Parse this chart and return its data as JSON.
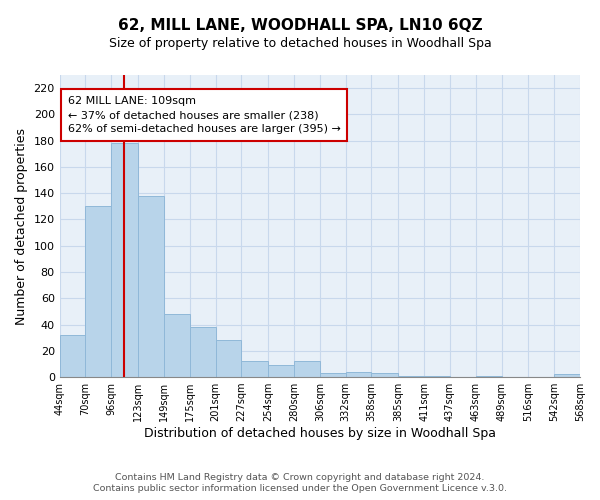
{
  "title": "62, MILL LANE, WOODHALL SPA, LN10 6QZ",
  "subtitle": "Size of property relative to detached houses in Woodhall Spa",
  "xlabel": "Distribution of detached houses by size in Woodhall Spa",
  "ylabel": "Number of detached properties",
  "footer_line1": "Contains HM Land Registry data © Crown copyright and database right 2024.",
  "footer_line2": "Contains public sector information licensed under the Open Government Licence v.3.0.",
  "bar_color": "#b8d4ea",
  "bar_edge_color": "#90b8d8",
  "grid_color": "#c8d8ec",
  "vline_color": "#cc0000",
  "annotation_box_edge": "#cc0000",
  "annotation_text_line1": "62 MILL LANE: 109sqm",
  "annotation_text_line2": "← 37% of detached houses are smaller (238)",
  "annotation_text_line3": "62% of semi-detached houses are larger (395) →",
  "property_size": 109,
  "bin_edges": [
    44,
    70,
    96,
    123,
    149,
    175,
    201,
    227,
    254,
    280,
    306,
    332,
    358,
    385,
    411,
    437,
    463,
    489,
    516,
    542,
    568
  ],
  "bin_labels": [
    "44sqm",
    "70sqm",
    "96sqm",
    "123sqm",
    "149sqm",
    "175sqm",
    "201sqm",
    "227sqm",
    "254sqm",
    "280sqm",
    "306sqm",
    "332sqm",
    "358sqm",
    "385sqm",
    "411sqm",
    "437sqm",
    "463sqm",
    "489sqm",
    "516sqm",
    "542sqm",
    "568sqm"
  ],
  "counts": [
    32,
    130,
    178,
    138,
    48,
    38,
    28,
    12,
    9,
    12,
    3,
    4,
    3,
    1,
    1,
    0,
    1,
    0,
    0,
    2
  ],
  "ylim": [
    0,
    230
  ],
  "yticks": [
    0,
    20,
    40,
    60,
    80,
    100,
    120,
    140,
    160,
    180,
    200,
    220
  ],
  "figure_bg": "#ffffff",
  "plot_bg": "#e8f0f8",
  "title_fontsize": 11,
  "subtitle_fontsize": 9,
  "ylabel_fontsize": 9,
  "xlabel_fontsize": 9
}
